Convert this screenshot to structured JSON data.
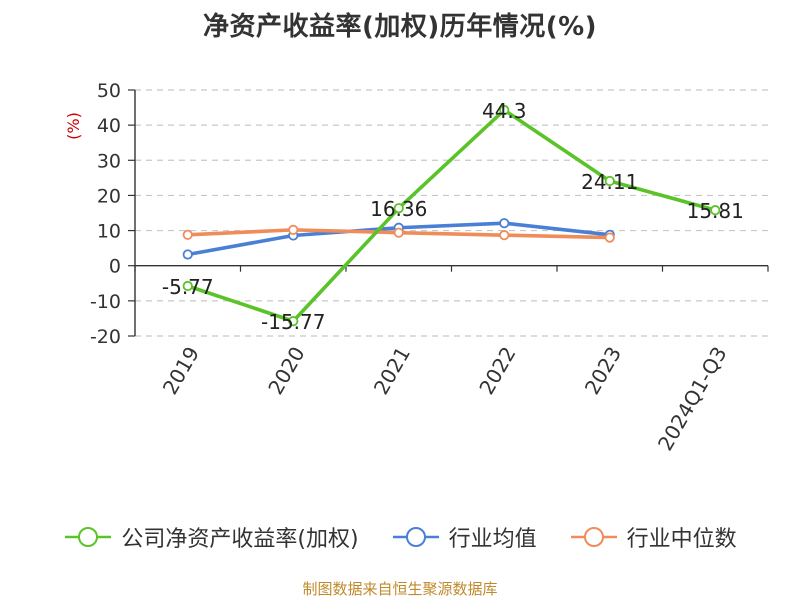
{
  "title": "净资产收益率(加权)历年情况(%)",
  "source": "制图数据来自恒生聚源数据库",
  "chart_data": {
    "type": "line",
    "title": "净资产收益率(加权)历年情况(%)",
    "ylabel": "(%)",
    "xlabel": "",
    "categories": [
      "2019",
      "2020",
      "2021",
      "2022",
      "2023",
      "2024Q1-Q3"
    ],
    "ylim": [
      -20,
      50
    ],
    "yticks": [
      50,
      40,
      30,
      20,
      10,
      0,
      -10,
      -20
    ],
    "grid": true,
    "legend_position": "bottom",
    "series": [
      {
        "name": "公司净资产收益率(加权)",
        "color": "#5ac328",
        "values": [
          -5.77,
          -15.77,
          16.36,
          44.3,
          24.11,
          15.81
        ],
        "labels": [
          "-5.77",
          "-15.77",
          "16.36",
          "44.3",
          "24.11",
          "15.81"
        ]
      },
      {
        "name": "行业均值",
        "color": "#4a7fd6",
        "values": [
          3.2,
          8.6,
          10.8,
          12.1,
          8.8,
          null
        ]
      },
      {
        "name": "行业中位数",
        "color": "#f08c5a",
        "values": [
          8.8,
          10.2,
          9.4,
          8.7,
          8.0,
          null
        ]
      }
    ]
  }
}
